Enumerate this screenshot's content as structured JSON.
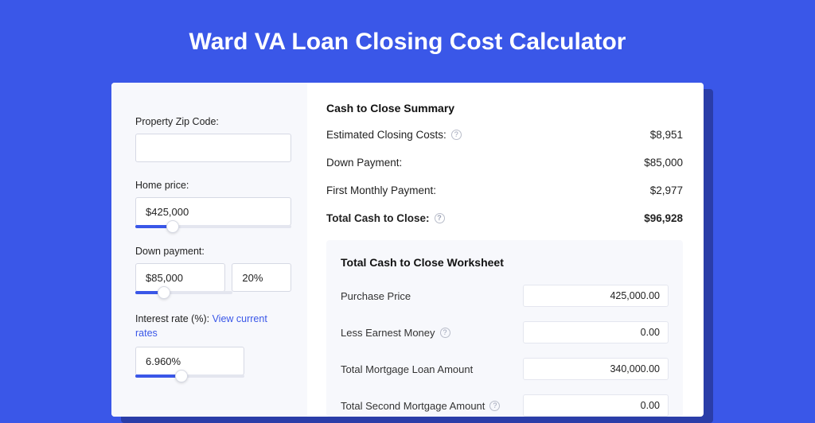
{
  "colors": {
    "page_bg": "#3a57e8",
    "card_bg": "#ffffff",
    "left_bg": "#f7f8fc",
    "shadow": "#2a3da8",
    "accent": "#3a57e8",
    "border": "#d6d9e4",
    "text": "#222222",
    "muted_border": "#e4e6ef"
  },
  "title": "Ward VA Loan Closing Cost Calculator",
  "inputs": {
    "zip": {
      "label": "Property Zip Code:",
      "value": ""
    },
    "home_price": {
      "label": "Home price:",
      "value": "$425,000",
      "slider_pct": 24
    },
    "down_payment": {
      "label": "Down payment:",
      "value": "$85,000",
      "pct_value": "20%",
      "slider_pct": 30
    },
    "interest": {
      "label_prefix": "Interest rate (%): ",
      "link_text": "View current rates",
      "value": "6.960%",
      "slider_pct": 42
    }
  },
  "summary": {
    "title": "Cash to Close Summary",
    "rows": [
      {
        "label": "Estimated Closing Costs:",
        "help": true,
        "value": "$8,951",
        "bold": false
      },
      {
        "label": "Down Payment:",
        "help": false,
        "value": "$85,000",
        "bold": false
      },
      {
        "label": "First Monthly Payment:",
        "help": false,
        "value": "$2,977",
        "bold": false
      },
      {
        "label": "Total Cash to Close:",
        "help": true,
        "value": "$96,928",
        "bold": true
      }
    ]
  },
  "worksheet": {
    "title": "Total Cash to Close Worksheet",
    "rows": [
      {
        "label": "Purchase Price",
        "help": false,
        "value": "425,000.00"
      },
      {
        "label": "Less Earnest Money",
        "help": true,
        "value": "0.00"
      },
      {
        "label": "Total Mortgage Loan Amount",
        "help": false,
        "value": "340,000.00"
      },
      {
        "label": "Total Second Mortgage Amount",
        "help": true,
        "value": "0.00"
      }
    ]
  }
}
